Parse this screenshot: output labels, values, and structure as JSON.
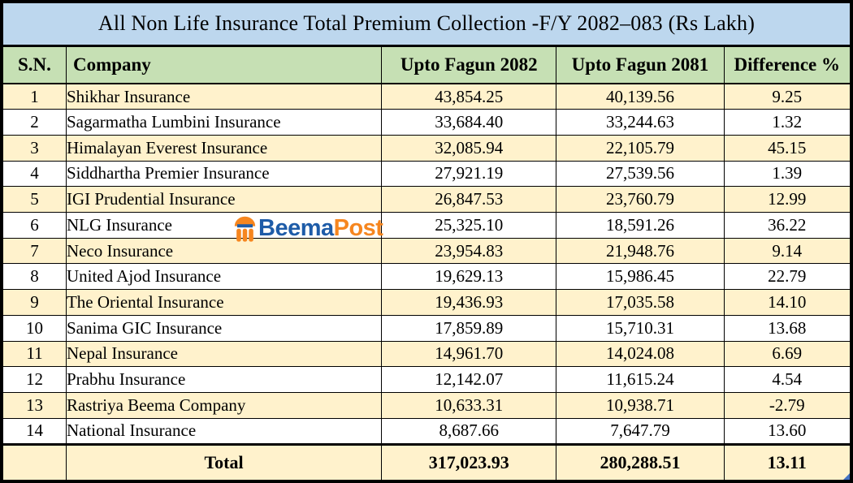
{
  "chart_data": {
    "type": "table",
    "title": "All Non Life Insurance Total Premium Collection -F/Y 2082–083  (Rs Lakh)",
    "columns": [
      "S.N.",
      "Company",
      "Upto Fagun 2082",
      "Upto Fagun 2081",
      "Difference %"
    ],
    "rows": [
      {
        "sn": "1",
        "company": "Shikhar Insurance",
        "upto_fagun_2082": "43,854.25",
        "upto_fagun_2081": "40,139.56",
        "difference_pct": "9.25"
      },
      {
        "sn": "2",
        "company": "Sagarmatha Lumbini Insurance",
        "upto_fagun_2082": "33,684.40",
        "upto_fagun_2081": "33,244.63",
        "difference_pct": "1.32"
      },
      {
        "sn": "3",
        "company": "Himalayan Everest Insurance",
        "upto_fagun_2082": "32,085.94",
        "upto_fagun_2081": "22,105.79",
        "difference_pct": "45.15"
      },
      {
        "sn": "4",
        "company": "Siddhartha Premier Insurance",
        "upto_fagun_2082": "27,921.19",
        "upto_fagun_2081": "27,539.56",
        "difference_pct": "1.39"
      },
      {
        "sn": "5",
        "company": "IGI Prudential Insurance",
        "upto_fagun_2082": "26,847.53",
        "upto_fagun_2081": "23,760.79",
        "difference_pct": "12.99"
      },
      {
        "sn": "6",
        "company": "NLG Insurance",
        "upto_fagun_2082": "25,325.10",
        "upto_fagun_2081": "18,591.26",
        "difference_pct": "36.22"
      },
      {
        "sn": "7",
        "company": "Neco Insurance",
        "upto_fagun_2082": "23,954.83",
        "upto_fagun_2081": "21,948.76",
        "difference_pct": "9.14"
      },
      {
        "sn": "8",
        "company": "United Ajod Insurance",
        "upto_fagun_2082": "19,629.13",
        "upto_fagun_2081": "15,986.45",
        "difference_pct": "22.79"
      },
      {
        "sn": "9",
        "company": "The Oriental Insurance",
        "upto_fagun_2082": "19,436.93",
        "upto_fagun_2081": "17,035.58",
        "difference_pct": "14.10"
      },
      {
        "sn": "10",
        "company": "Sanima GIC Insurance",
        "upto_fagun_2082": "17,859.89",
        "upto_fagun_2081": "15,710.31",
        "difference_pct": "13.68"
      },
      {
        "sn": "11",
        "company": "Nepal Insurance",
        "upto_fagun_2082": "14,961.70",
        "upto_fagun_2081": "14,024.08",
        "difference_pct": "6.69"
      },
      {
        "sn": "12",
        "company": "Prabhu Insurance",
        "upto_fagun_2082": "12,142.07",
        "upto_fagun_2081": "11,615.24",
        "difference_pct": "4.54"
      },
      {
        "sn": "13",
        "company": "Rastriya Beema Company",
        "upto_fagun_2082": "10,633.31",
        "upto_fagun_2081": "10,938.71",
        "difference_pct": "-2.79"
      },
      {
        "sn": "14",
        "company": "National Insurance",
        "upto_fagun_2082": "8,687.66",
        "upto_fagun_2081": "7,647.79",
        "difference_pct": "13.60"
      }
    ],
    "total": {
      "label": "Total",
      "upto_fagun_2082": "317,023.93",
      "upto_fagun_2081": "280,288.51",
      "difference_pct": "13.11"
    }
  },
  "watermark": {
    "text_primary": "Beema",
    "text_secondary": "Post",
    "icon": "beemapost-umbrella-icon"
  },
  "colors": {
    "title_bg": "#BDD7EE",
    "header_bg": "#C6E0B4",
    "row_alt_bg": "#FFF2CC",
    "row_bg": "#FFFFFF",
    "border": "#000000",
    "brand_blue": "#1E5CA8",
    "brand_orange": "#F6861F",
    "artifact_blue": "#4472C4"
  }
}
